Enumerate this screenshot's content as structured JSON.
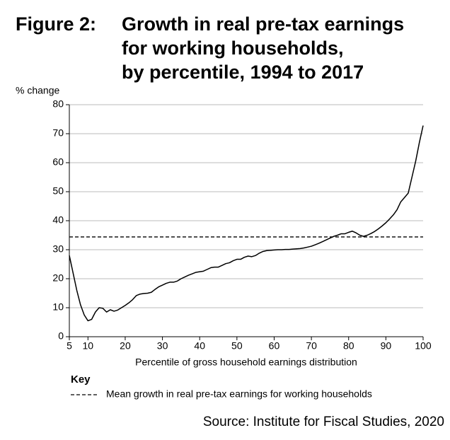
{
  "chart_data": {
    "type": "line",
    "figure_label": "Figure 2:",
    "title_lines": [
      "Growth in real pre-tax earnings",
      "for working households,",
      "by percentile, 1994 to 2017"
    ],
    "y_label": "% change",
    "x_label": "Percentile of gross household earnings distribution",
    "xlim": [
      5,
      100
    ],
    "xticks": [
      5,
      10,
      20,
      30,
      40,
      50,
      60,
      70,
      80,
      90,
      100
    ],
    "ylim": [
      0,
      80
    ],
    "yticks": [
      0,
      10,
      20,
      30,
      40,
      50,
      60,
      70,
      80
    ],
    "grid": true,
    "x": [
      5,
      6,
      7,
      8,
      9,
      10,
      11,
      12,
      13,
      14,
      15,
      16,
      17,
      18,
      19,
      20,
      21,
      22,
      23,
      24,
      25,
      26,
      27,
      28,
      29,
      30,
      31,
      32,
      33,
      34,
      35,
      36,
      37,
      38,
      39,
      40,
      41,
      42,
      43,
      44,
      45,
      46,
      47,
      48,
      49,
      50,
      51,
      52,
      53,
      54,
      55,
      56,
      57,
      58,
      59,
      60,
      61,
      62,
      63,
      64,
      65,
      66,
      67,
      68,
      69,
      70,
      71,
      72,
      73,
      74,
      75,
      76,
      77,
      78,
      79,
      80,
      81,
      82,
      83,
      84,
      85,
      86,
      87,
      88,
      89,
      90,
      91,
      92,
      93,
      94,
      95,
      96,
      97,
      98,
      99,
      100
    ],
    "series": [
      {
        "color": "#000000",
        "values": [
          28,
          22,
          16,
          11,
          7.5,
          5.5,
          6,
          8.5,
          10,
          9.8,
          8.5,
          9.3,
          8.8,
          9.2,
          10,
          10.8,
          11.7,
          12.8,
          14.2,
          14.7,
          14.9,
          15,
          15.3,
          16.3,
          17.2,
          17.8,
          18.4,
          18.8,
          18.8,
          19.2,
          20,
          20.6,
          21.2,
          21.7,
          22.2,
          22.4,
          22.6,
          23.2,
          23.8,
          24,
          24,
          24.6,
          25.2,
          25.5,
          26.2,
          26.7,
          26.7,
          27.4,
          27.8,
          27.6,
          28,
          28.8,
          29.4,
          29.7,
          29.8,
          29.9,
          30,
          30,
          30.1,
          30.1,
          30.2,
          30.3,
          30.4,
          30.6,
          30.9,
          31.2,
          31.7,
          32.2,
          32.8,
          33.4,
          34,
          34.6,
          35,
          35.5,
          35.5,
          36,
          36.4,
          35.8,
          35,
          34.6,
          35,
          35.6,
          36.3,
          37.2,
          38.2,
          39.3,
          40.6,
          42,
          43.8,
          46.5,
          48,
          49.5,
          55,
          60.5,
          67,
          72.8
        ]
      }
    ],
    "reference_line": {
      "value": 34.4,
      "label": "Mean growth in real pre-tax earnings for working households",
      "color": "#000000",
      "dashed": true
    },
    "key_title": "Key",
    "source": "Source: Institute for Fiscal Studies, 2020"
  }
}
